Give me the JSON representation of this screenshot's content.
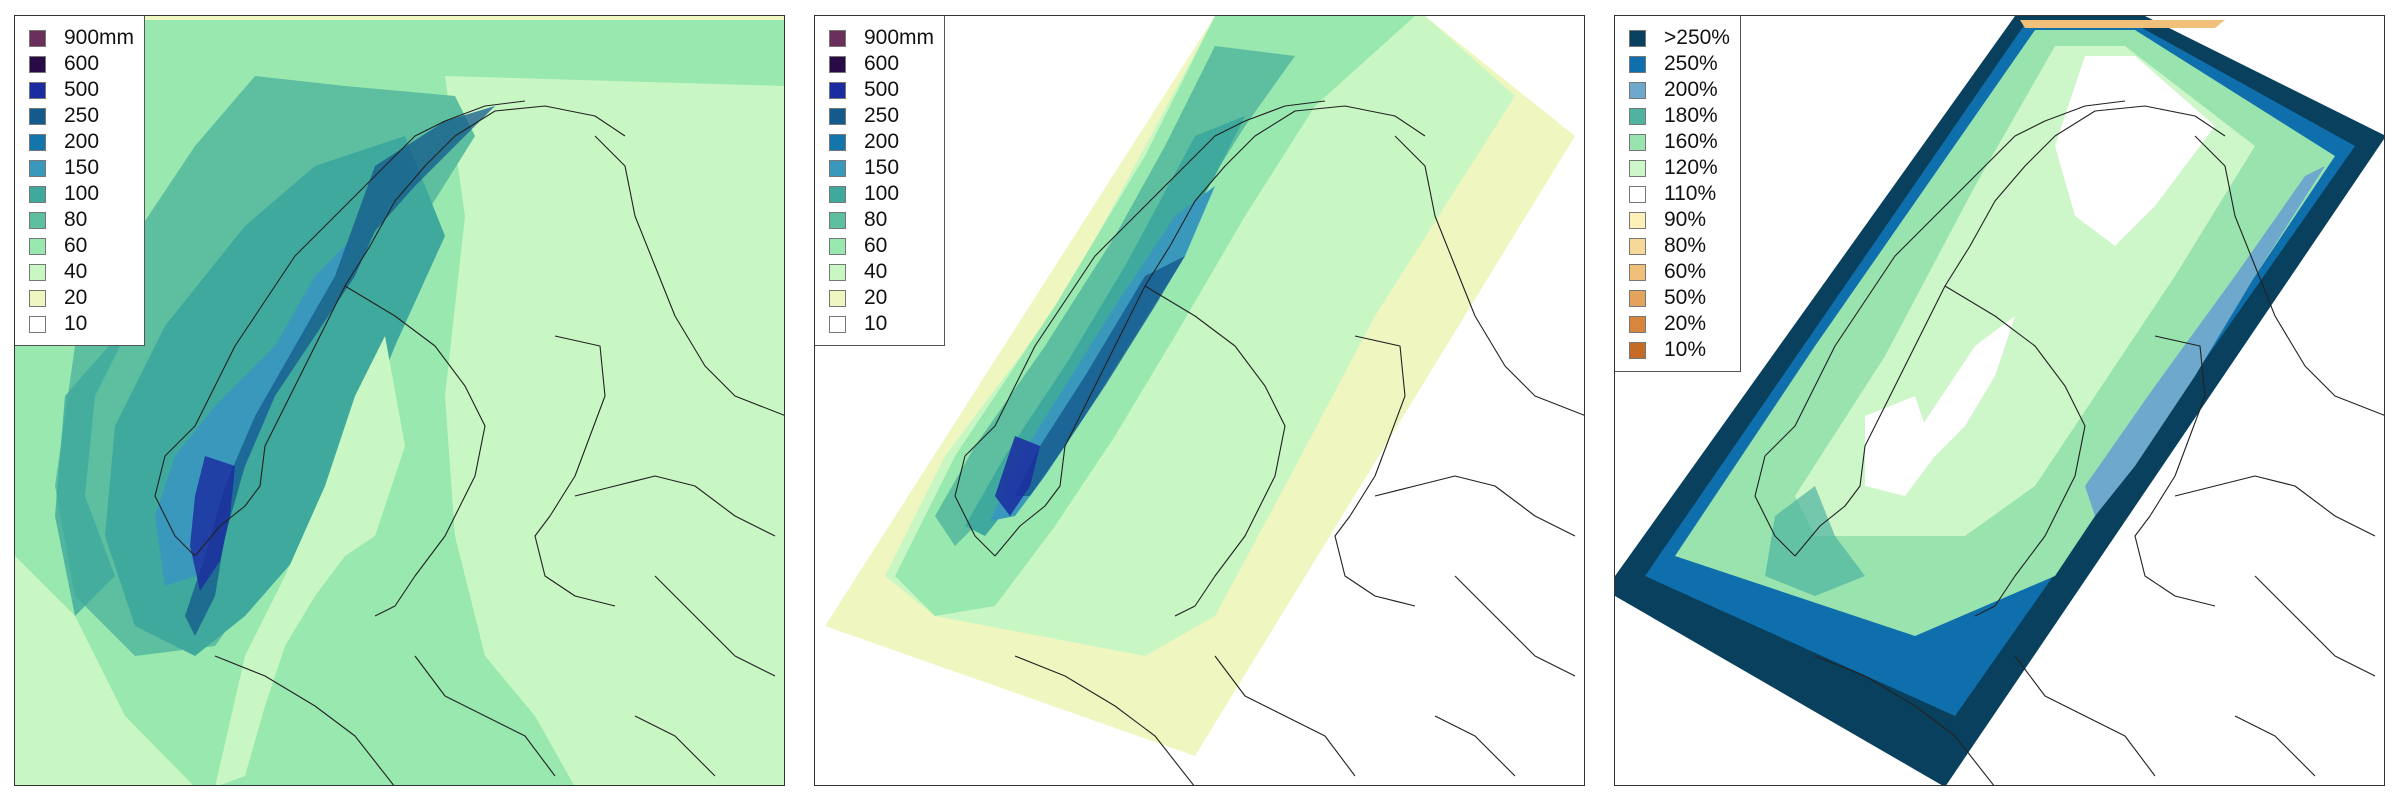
{
  "panels": [
    {
      "legend": [
        {
          "label": "900mm",
          "color": "#6b2f5e"
        },
        {
          "label": "600",
          "color": "#2a0a45"
        },
        {
          "label": "500",
          "color": "#1b2ba0"
        },
        {
          "label": "250",
          "color": "#145a8c"
        },
        {
          "label": "200",
          "color": "#1475ad"
        },
        {
          "label": "150",
          "color": "#3a98bd"
        },
        {
          "label": "100",
          "color": "#3ea99c"
        },
        {
          "label": "80",
          "color": "#5dbfa0"
        },
        {
          "label": "60",
          "color": "#98e8b0"
        },
        {
          "label": "40",
          "color": "#c8f7c4"
        },
        {
          "label": "20",
          "color": "#f0f6c0"
        },
        {
          "label": "10",
          "color": "#ffffff"
        }
      ]
    },
    {
      "legend": [
        {
          "label": "900mm",
          "color": "#6b2f5e"
        },
        {
          "label": "600",
          "color": "#2a0a45"
        },
        {
          "label": "500",
          "color": "#1b2ba0"
        },
        {
          "label": "250",
          "color": "#145a8c"
        },
        {
          "label": "200",
          "color": "#1475ad"
        },
        {
          "label": "150",
          "color": "#3a98bd"
        },
        {
          "label": "100",
          "color": "#3ea99c"
        },
        {
          "label": "80",
          "color": "#5dbfa0"
        },
        {
          "label": "60",
          "color": "#98e8b0"
        },
        {
          "label": "40",
          "color": "#c8f7c4"
        },
        {
          "label": "20",
          "color": "#f0f6c0"
        },
        {
          "label": "10",
          "color": "#ffffff"
        }
      ]
    },
    {
      "legend": [
        {
          "label": ">250%",
          "color": "#08405e"
        },
        {
          "label": "250%",
          "color": "#0f6fad"
        },
        {
          "label": "200%",
          "color": "#6ea8cc"
        },
        {
          "label": "180%",
          "color": "#4fb3a0"
        },
        {
          "label": "160%",
          "color": "#98e3ae"
        },
        {
          "label": "120%",
          "color": "#cdf6c9"
        },
        {
          "label": "110%",
          "color": "#ffffff"
        },
        {
          "label": "90%",
          "color": "#fdf0b8"
        },
        {
          "label": "80%",
          "color": "#f6d998"
        },
        {
          "label": "60%",
          "color": "#f0c07a"
        },
        {
          "label": "50%",
          "color": "#e3a35c"
        },
        {
          "label": "20%",
          "color": "#d8853e"
        },
        {
          "label": "10%",
          "color": "#c66b25"
        }
      ]
    }
  ]
}
